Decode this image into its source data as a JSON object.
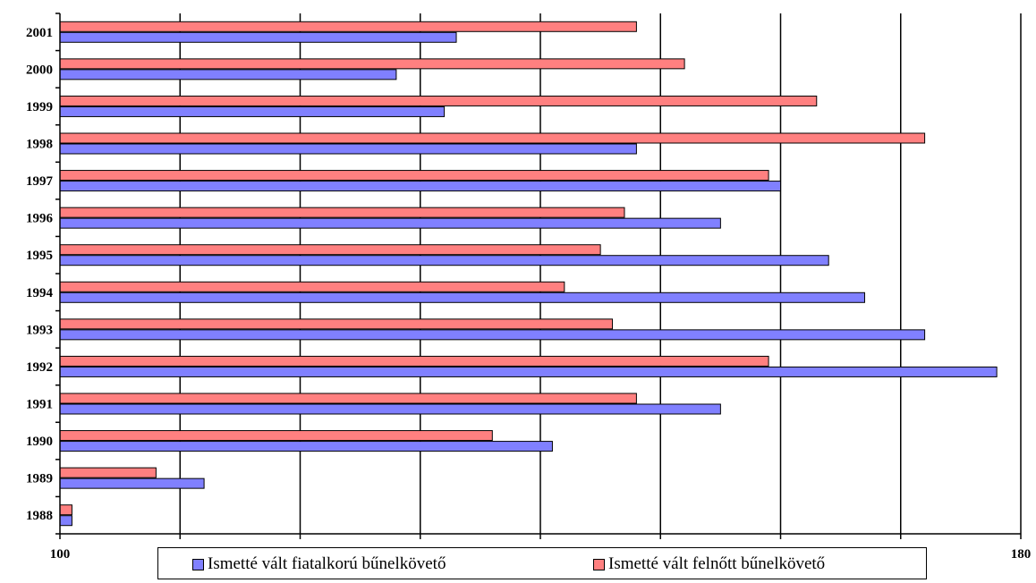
{
  "chart_data": {
    "type": "bar",
    "orientation": "horizontal",
    "categories": [
      "1988",
      "1989",
      "1990",
      "1991",
      "1992",
      "1993",
      "1994",
      "1995",
      "1996",
      "1997",
      "1998",
      "1999",
      "2000",
      "2001"
    ],
    "series": [
      {
        "name": "Ismetté vált fiatalkorú bűnelkövető",
        "color": "#8080FF",
        "values": [
          101,
          112,
          141,
          155,
          178,
          172,
          167,
          164,
          155,
          160,
          148,
          132,
          128,
          133
        ]
      },
      {
        "name": "Ismetté vált felnőtt bűnelkövető",
        "color": "#FF8080",
        "values": [
          101,
          108,
          136,
          148,
          159,
          146,
          142,
          145,
          147,
          159,
          172,
          163,
          152,
          148
        ]
      }
    ],
    "xlim": [
      100,
      180
    ],
    "xtick_labels": [
      "100",
      "180"
    ],
    "gridlines": true,
    "legend_position": "bottom"
  }
}
